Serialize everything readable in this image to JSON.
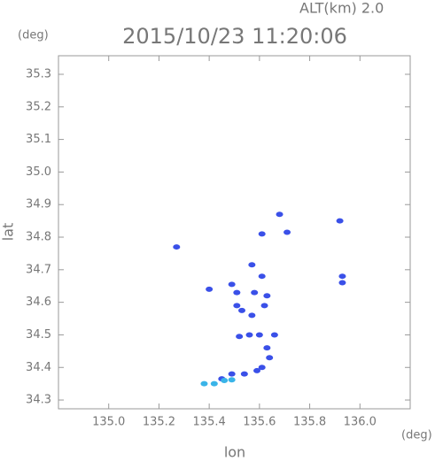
{
  "chart_data": {
    "type": "scatter",
    "title": "2015/10/23 11:20:06",
    "annotation": "ALT(km) 2.0",
    "x_label": "lon",
    "y_label": "lat",
    "x_unit": "(deg)",
    "y_unit": "(deg)",
    "xlim": [
      134.8,
      136.2
    ],
    "ylim": [
      34.273,
      35.357
    ],
    "xticks": [
      {
        "value": 135,
        "label": "135.0"
      },
      135.2,
      135.4,
      135.6,
      135.8,
      {
        "value": 136,
        "label": "136.0"
      }
    ],
    "yticks": [
      34.3,
      34.4,
      34.5,
      34.6,
      34.7,
      34.8,
      34.9,
      {
        "value": 35,
        "label": "35.0"
      },
      35.1,
      35.2,
      35.3
    ],
    "series": [
      {
        "color": "#3a50e8",
        "x": [
          135.27,
          135.4,
          135.49,
          135.51,
          135.51,
          135.53,
          135.57,
          135.61,
          135.63,
          135.61,
          135.71,
          135.68,
          135.92,
          135.93,
          135.93,
          135.52,
          135.56,
          135.6,
          135.66,
          135.63,
          135.64,
          135.61,
          135.59,
          135.54,
          135.49,
          135.45,
          135.57,
          135.58,
          135.62
        ],
        "y": [
          34.77,
          34.64,
          34.655,
          34.63,
          34.59,
          34.575,
          34.56,
          34.68,
          34.62,
          34.81,
          34.815,
          34.87,
          34.85,
          34.66,
          34.68,
          34.495,
          34.5,
          34.5,
          34.5,
          34.46,
          34.43,
          34.4,
          34.39,
          34.38,
          34.38,
          34.365,
          34.715,
          34.63,
          34.59
        ]
      },
      {
        "color": "#3ab4e8",
        "x": [
          135.38,
          135.42,
          135.46,
          135.49
        ],
        "y": [
          34.35,
          34.35,
          34.36,
          34.362
        ]
      }
    ]
  }
}
